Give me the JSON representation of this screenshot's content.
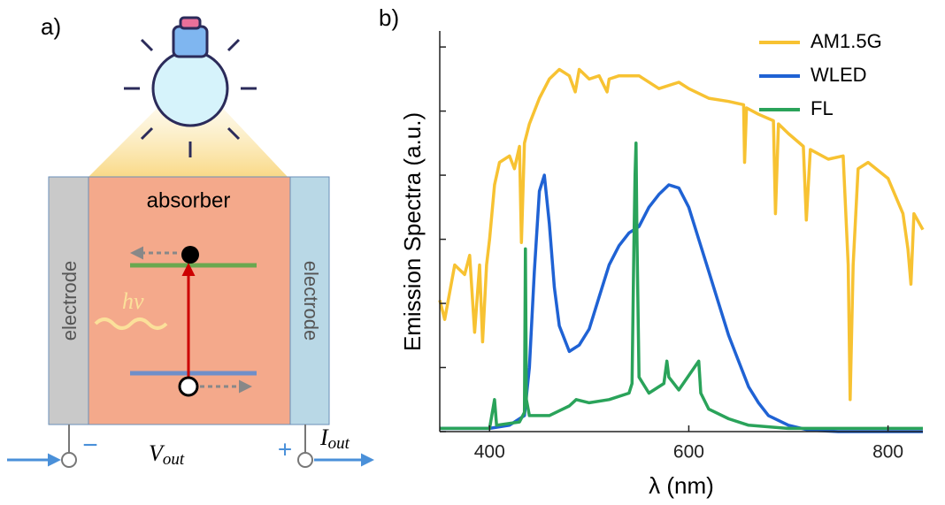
{
  "diagram": {
    "panel_label": "a)",
    "absorber": "absorber",
    "electrode_left": "electrode",
    "electrode_right": "electrode",
    "photon": "hν",
    "minus": "−",
    "plus": "+",
    "voltage": {
      "main": "V",
      "sub": "out"
    },
    "current": {
      "main": "I",
      "sub": "out"
    }
  },
  "chart_data": {
    "type": "line",
    "panel_label": "b)",
    "y_label": "Emission Spectra (a.u.)",
    "x_label": "λ (nm)",
    "xlim": [
      350,
      835
    ],
    "xticks": [
      400,
      600,
      800
    ],
    "ylim": [
      0,
      1.25
    ],
    "yticks": [
      0,
      0.2,
      0.4,
      0.6,
      0.8,
      1.0,
      1.2
    ],
    "legend": "upper right",
    "series": [
      {
        "name": "AM1.5G",
        "color": "#f7c232",
        "x": [
          350,
          355,
          365,
          375,
          380,
          385,
          390,
          393,
          397,
          400,
          405,
          410,
          420,
          425,
          430,
          432,
          435,
          440,
          450,
          460,
          470,
          480,
          486,
          490,
          500,
          510,
          518,
          520,
          530,
          550,
          570,
          590,
          600,
          620,
          640,
          655,
          656,
          658,
          670,
          685,
          687,
          690,
          700,
          715,
          718,
          722,
          740,
          755,
          760,
          762,
          765,
          770,
          780,
          800,
          815,
          820,
          823,
          826,
          835
        ],
        "values": [
          0.41,
          0.35,
          0.52,
          0.49,
          0.55,
          0.31,
          0.52,
          0.28,
          0.52,
          0.6,
          0.77,
          0.84,
          0.86,
          0.82,
          0.89,
          0.59,
          0.9,
          0.96,
          1.04,
          1.1,
          1.13,
          1.11,
          1.06,
          1.13,
          1.1,
          1.11,
          1.06,
          1.1,
          1.11,
          1.11,
          1.07,
          1.09,
          1.07,
          1.04,
          1.03,
          1.02,
          0.84,
          1.01,
          0.99,
          0.97,
          0.68,
          0.96,
          0.93,
          0.89,
          0.66,
          0.88,
          0.85,
          0.86,
          0.52,
          0.1,
          0.52,
          0.82,
          0.84,
          0.79,
          0.68,
          0.57,
          0.46,
          0.68,
          0.63
        ]
      },
      {
        "name": "WLED",
        "color": "#1f62d4",
        "x": [
          350,
          400,
          420,
          435,
          440,
          445,
          450,
          455,
          460,
          465,
          470,
          480,
          490,
          500,
          510,
          520,
          530,
          540,
          550,
          560,
          570,
          580,
          590,
          600,
          610,
          620,
          630,
          640,
          650,
          660,
          670,
          680,
          700,
          720,
          750,
          835
        ],
        "values": [
          0.01,
          0.01,
          0.02,
          0.05,
          0.2,
          0.5,
          0.75,
          0.8,
          0.65,
          0.45,
          0.33,
          0.25,
          0.27,
          0.32,
          0.42,
          0.52,
          0.58,
          0.62,
          0.64,
          0.7,
          0.74,
          0.77,
          0.76,
          0.7,
          0.6,
          0.5,
          0.4,
          0.3,
          0.22,
          0.14,
          0.09,
          0.05,
          0.02,
          0.005,
          0,
          0
        ]
      },
      {
        "name": "FL",
        "color": "#2aa35a",
        "x": [
          350,
          400,
          405,
          407,
          430,
          435,
          436,
          437,
          440,
          460,
          480,
          487,
          500,
          520,
          540,
          543,
          545,
          546,
          547,
          548,
          550,
          560,
          575,
          578,
          580,
          590,
          610,
          612,
          620,
          640,
          660,
          700,
          750,
          835
        ],
        "values": [
          0.01,
          0.01,
          0.1,
          0.02,
          0.03,
          0.06,
          0.57,
          0.1,
          0.05,
          0.05,
          0.08,
          0.1,
          0.09,
          0.1,
          0.12,
          0.15,
          0.6,
          0.8,
          0.9,
          0.6,
          0.17,
          0.12,
          0.15,
          0.22,
          0.17,
          0.13,
          0.22,
          0.12,
          0.07,
          0.04,
          0.02,
          0.01,
          0.01,
          0.01
        ]
      }
    ]
  }
}
